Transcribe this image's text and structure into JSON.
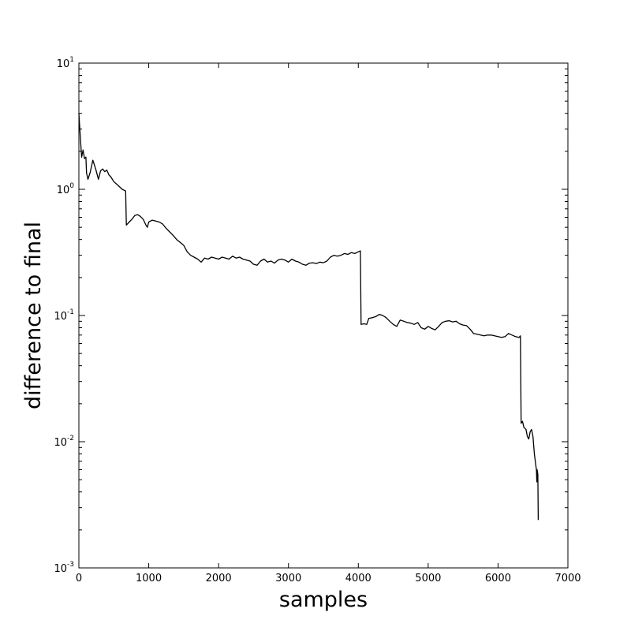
{
  "chart_data": {
    "type": "line",
    "title": "",
    "xlabel": "samples",
    "ylabel": "difference to final",
    "xlim": [
      0,
      7000
    ],
    "ylim": [
      0.001,
      10
    ],
    "yscale": "log",
    "grid": false,
    "x_ticks": [
      0,
      1000,
      2000,
      3000,
      4000,
      5000,
      6000,
      7000
    ],
    "y_ticks": [
      {
        "base": "10",
        "exp": "-3",
        "value": 0.001
      },
      {
        "base": "10",
        "exp": "-2",
        "value": 0.01
      },
      {
        "base": "10",
        "exp": "-1",
        "value": 0.1
      },
      {
        "base": "10",
        "exp": "0",
        "value": 1
      },
      {
        "base": "10",
        "exp": "1",
        "value": 10
      }
    ],
    "series": [
      {
        "color": "#000000",
        "points": [
          [
            0,
            4.0
          ],
          [
            20,
            2.6
          ],
          [
            40,
            1.8
          ],
          [
            60,
            2.05
          ],
          [
            80,
            1.75
          ],
          [
            100,
            1.8
          ],
          [
            110,
            1.35
          ],
          [
            130,
            1.2
          ],
          [
            160,
            1.35
          ],
          [
            200,
            1.7
          ],
          [
            240,
            1.45
          ],
          [
            280,
            1.2
          ],
          [
            310,
            1.4
          ],
          [
            340,
            1.45
          ],
          [
            370,
            1.38
          ],
          [
            400,
            1.42
          ],
          [
            430,
            1.3
          ],
          [
            460,
            1.25
          ],
          [
            500,
            1.15
          ],
          [
            540,
            1.1
          ],
          [
            580,
            1.05
          ],
          [
            620,
            1.0
          ],
          [
            670,
            0.97
          ],
          [
            680,
            0.52
          ],
          [
            720,
            0.55
          ],
          [
            760,
            0.58
          ],
          [
            800,
            0.62
          ],
          [
            840,
            0.63
          ],
          [
            880,
            0.61
          ],
          [
            920,
            0.58
          ],
          [
            960,
            0.52
          ],
          [
            980,
            0.5
          ],
          [
            1000,
            0.55
          ],
          [
            1050,
            0.57
          ],
          [
            1100,
            0.56
          ],
          [
            1150,
            0.55
          ],
          [
            1200,
            0.53
          ],
          [
            1250,
            0.49
          ],
          [
            1300,
            0.46
          ],
          [
            1350,
            0.43
          ],
          [
            1400,
            0.4
          ],
          [
            1450,
            0.38
          ],
          [
            1500,
            0.36
          ],
          [
            1550,
            0.32
          ],
          [
            1600,
            0.3
          ],
          [
            1650,
            0.29
          ],
          [
            1700,
            0.28
          ],
          [
            1750,
            0.265
          ],
          [
            1800,
            0.285
          ],
          [
            1850,
            0.28
          ],
          [
            1900,
            0.29
          ],
          [
            1950,
            0.285
          ],
          [
            2000,
            0.28
          ],
          [
            2050,
            0.29
          ],
          [
            2100,
            0.285
          ],
          [
            2150,
            0.28
          ],
          [
            2200,
            0.295
          ],
          [
            2250,
            0.285
          ],
          [
            2300,
            0.29
          ],
          [
            2350,
            0.28
          ],
          [
            2400,
            0.275
          ],
          [
            2450,
            0.27
          ],
          [
            2500,
            0.255
          ],
          [
            2550,
            0.25
          ],
          [
            2600,
            0.27
          ],
          [
            2650,
            0.28
          ],
          [
            2700,
            0.265
          ],
          [
            2750,
            0.27
          ],
          [
            2800,
            0.26
          ],
          [
            2850,
            0.275
          ],
          [
            2900,
            0.28
          ],
          [
            2950,
            0.275
          ],
          [
            3000,
            0.265
          ],
          [
            3050,
            0.28
          ],
          [
            3100,
            0.27
          ],
          [
            3150,
            0.265
          ],
          [
            3200,
            0.255
          ],
          [
            3250,
            0.25
          ],
          [
            3300,
            0.26
          ],
          [
            3350,
            0.262
          ],
          [
            3400,
            0.258
          ],
          [
            3450,
            0.265
          ],
          [
            3500,
            0.262
          ],
          [
            3550,
            0.27
          ],
          [
            3600,
            0.29
          ],
          [
            3650,
            0.3
          ],
          [
            3700,
            0.295
          ],
          [
            3750,
            0.3
          ],
          [
            3800,
            0.31
          ],
          [
            3850,
            0.305
          ],
          [
            3900,
            0.315
          ],
          [
            3950,
            0.31
          ],
          [
            4000,
            0.32
          ],
          [
            4030,
            0.325
          ],
          [
            4040,
            0.085
          ],
          [
            4080,
            0.086
          ],
          [
            4120,
            0.085
          ],
          [
            4150,
            0.095
          ],
          [
            4200,
            0.096
          ],
          [
            4250,
            0.098
          ],
          [
            4300,
            0.102
          ],
          [
            4350,
            0.1
          ],
          [
            4400,
            0.096
          ],
          [
            4450,
            0.09
          ],
          [
            4500,
            0.085
          ],
          [
            4550,
            0.082
          ],
          [
            4600,
            0.092
          ],
          [
            4650,
            0.09
          ],
          [
            4700,
            0.088
          ],
          [
            4750,
            0.087
          ],
          [
            4800,
            0.085
          ],
          [
            4850,
            0.088
          ],
          [
            4900,
            0.08
          ],
          [
            4950,
            0.078
          ],
          [
            5000,
            0.082
          ],
          [
            5050,
            0.079
          ],
          [
            5100,
            0.077
          ],
          [
            5150,
            0.082
          ],
          [
            5200,
            0.088
          ],
          [
            5250,
            0.09
          ],
          [
            5300,
            0.091
          ],
          [
            5350,
            0.089
          ],
          [
            5400,
            0.09
          ],
          [
            5450,
            0.086
          ],
          [
            5500,
            0.084
          ],
          [
            5550,
            0.083
          ],
          [
            5600,
            0.078
          ],
          [
            5650,
            0.072
          ],
          [
            5700,
            0.071
          ],
          [
            5750,
            0.07
          ],
          [
            5800,
            0.069
          ],
          [
            5850,
            0.07
          ],
          [
            5900,
            0.07
          ],
          [
            5950,
            0.069
          ],
          [
            6000,
            0.068
          ],
          [
            6050,
            0.067
          ],
          [
            6100,
            0.068
          ],
          [
            6150,
            0.072
          ],
          [
            6200,
            0.07
          ],
          [
            6250,
            0.068
          ],
          [
            6300,
            0.067
          ],
          [
            6320,
            0.069
          ],
          [
            6330,
            0.014
          ],
          [
            6350,
            0.0145
          ],
          [
            6370,
            0.013
          ],
          [
            6400,
            0.0125
          ],
          [
            6420,
            0.011
          ],
          [
            6440,
            0.0105
          ],
          [
            6460,
            0.012
          ],
          [
            6480,
            0.0125
          ],
          [
            6500,
            0.011
          ],
          [
            6520,
            0.008
          ],
          [
            6540,
            0.0065
          ],
          [
            6550,
            0.006
          ],
          [
            6555,
            0.0048
          ],
          [
            6560,
            0.006
          ],
          [
            6570,
            0.0055
          ],
          [
            6575,
            0.0024
          ]
        ]
      }
    ]
  }
}
